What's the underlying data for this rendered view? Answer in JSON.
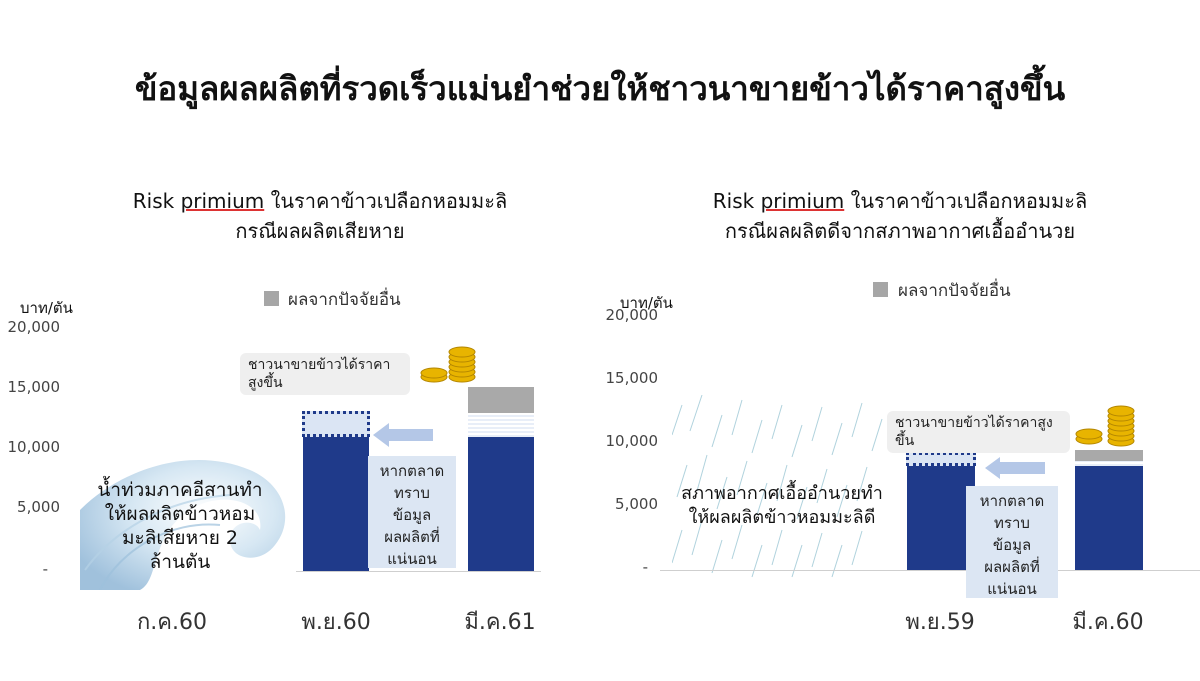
{
  "title": "ข้อมูลผลผลิตที่รวดเร็วแม่นยำช่วยให้ชาวนาขายข้าวได้ราคาสูงขึ้น",
  "colors": {
    "bar": "#1f3a8a",
    "other_factors": "#a9a9a9",
    "callout_bg": "#efefef",
    "box_bg": "#dce6f3"
  },
  "charts": [
    {
      "title_line1_pre": "Risk ",
      "title_line1_u": "primium",
      "title_line1_post": " ในราคาข้าวเปลือกหอมมะลิ",
      "title_line2": "กรณีผลผลิตเสียหาย",
      "unit": "บาท/ตัน",
      "legend": "ผลจากปัจจัยอื่น",
      "yticks": [
        "20,000",
        "15,000",
        "10,000",
        "5,000",
        "-"
      ],
      "xlabels": [
        "ก.ค.60",
        "พ.ย.60",
        "มี.ค.61"
      ],
      "callout": "ชาวนาขายข้าวได้ราคาสูงขึ้น",
      "box_text": "หากตลาดทราบข้อมูลผลผลิตที่แน่นอน",
      "box_lines": [
        "หากตลาด",
        "ทราบ",
        "ข้อมูล",
        "ผลผลิตที่",
        "แน่นอน"
      ],
      "annotation_lines": [
        "น้ำท่วมภาคอีสานทำ",
        "ให้ผลผลิตข้าวหอม",
        "มะลิเสียหาย   2",
        "ล้านตัน"
      ]
    },
    {
      "title_line1_pre": "Risk ",
      "title_line1_u": "primium",
      "title_line1_post": " ในราคาข้าวเปลือกหอมมะลิ",
      "title_line2": "กรณีผลผลิตดีจากสภาพอากาศเอื้ออำนวย",
      "unit": "บาท/ตัน",
      "legend": "ผลจากปัจจัยอื่น",
      "yticks": [
        "20,000",
        "15,000",
        "10,000",
        "5,000",
        "-"
      ],
      "xlabels": [
        "พ.ย.59",
        "มี.ค.60"
      ],
      "callout": "ชาวนาขายข้าวได้ราคาสูงขึ้น",
      "box_text": "หากตลาดทราบข้อมูลผลผลิตที่แน่นอน",
      "box_lines": [
        "หากตลาด",
        "ทราบ",
        "ข้อมูล",
        "ผลผลิตที่",
        "แน่นอน"
      ],
      "annotation_lines": [
        "สภาพอากาศเอื้ออำนวยทำ",
        "ให้ผลผลิตข้าวหอมมะลิดี"
      ]
    }
  ],
  "chart_data": [
    {
      "type": "bar",
      "title": "Risk primium ในราคาข้าวเปลือกหอมมะลิ กรณีผลผลิตเสียหาย",
      "ylabel": "บาท/ตัน",
      "ylim": [
        0,
        20000
      ],
      "categories": [
        "ก.ค.60",
        "พ.ย.60",
        "มี.ค.61"
      ],
      "series": [
        {
          "name": "",
          "values": [
            null,
            10800,
            10800
          ]
        },
        {
          "name": "",
          "values": [
            null,
            2100,
            1800
          ]
        },
        {
          "name": "ผลจากปัจจัยอื่น",
          "values": [
            null,
            null,
            2100
          ]
        }
      ]
    },
    {
      "type": "bar",
      "title": "Risk primium ในราคาข้าวเปลือกหอมมะลิ กรณีผลผลิตดีจากสภาพอากาศเอื้ออำนวย",
      "ylabel": "บาท/ตัน",
      "ylim": [
        0,
        20000
      ],
      "categories": [
        "พ.ย.59",
        "มี.ค.60"
      ],
      "series": [
        {
          "name": "",
          "values": [
            8200,
            8200
          ]
        },
        {
          "name": "",
          "values": [
            700,
            300
          ]
        },
        {
          "name": "ผลจากปัจจัยอื่น",
          "values": [
            null,
            900
          ]
        }
      ]
    }
  ]
}
